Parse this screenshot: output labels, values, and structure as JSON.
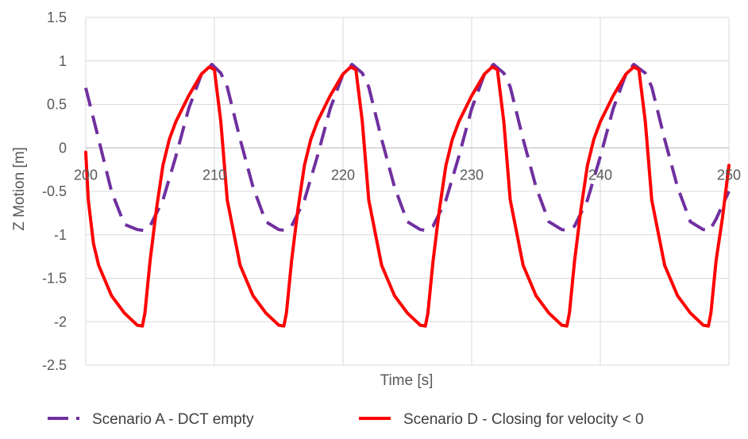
{
  "chart_data": {
    "type": "line",
    "xlabel": "Time [s]",
    "ylabel": "Z Motion [m]",
    "xlim": [
      200,
      250
    ],
    "ylim": [
      -2.5,
      1.5
    ],
    "x_ticks": [
      200,
      210,
      220,
      230,
      240,
      250
    ],
    "y_ticks": [
      1.5,
      1,
      0.5,
      0,
      -0.5,
      -1,
      -1.5,
      -2,
      -2.5
    ],
    "grid": true,
    "legend_position": "bottom",
    "series": [
      {
        "name": "Scenario A - DCT empty",
        "color": "#7030A0",
        "style": "dashed",
        "x": [
          200,
          201,
          202,
          203,
          204,
          204.5,
          205,
          206,
          207,
          208,
          209,
          209.8,
          210.5,
          211,
          212,
          213,
          214,
          215,
          215.5,
          216,
          217,
          218,
          219,
          220,
          220.7,
          221.5,
          222,
          223,
          224,
          225,
          226,
          226.5,
          227,
          228,
          229,
          230,
          231,
          231.7,
          232.5,
          233,
          234,
          235,
          236,
          237,
          237.5,
          238,
          239,
          240,
          241,
          242,
          242.6,
          243.5,
          244,
          245,
          246,
          247,
          248,
          248.5,
          249,
          250
        ],
        "y": [
          0.69,
          0.1,
          -0.5,
          -0.88,
          -0.94,
          -0.95,
          -0.9,
          -0.6,
          -0.1,
          0.45,
          0.85,
          0.96,
          0.86,
          0.7,
          0.1,
          -0.45,
          -0.85,
          -0.94,
          -0.95,
          -0.9,
          -0.6,
          -0.1,
          0.45,
          0.85,
          0.96,
          0.86,
          0.7,
          0.1,
          -0.45,
          -0.85,
          -0.94,
          -0.95,
          -0.9,
          -0.6,
          -0.1,
          0.45,
          0.85,
          0.96,
          0.86,
          0.7,
          0.1,
          -0.45,
          -0.85,
          -0.94,
          -0.95,
          -0.9,
          -0.6,
          -0.1,
          0.45,
          0.85,
          0.96,
          0.86,
          0.7,
          0.1,
          -0.45,
          -0.85,
          -0.94,
          -0.95,
          -0.82,
          -0.5
        ]
      },
      {
        "name": "Scenario D - Closing for velocity < 0",
        "color": "#FF0000",
        "style": "solid",
        "x": [
          200,
          200.2,
          200.6,
          201,
          202,
          203,
          204,
          204.4,
          204.6,
          205,
          205.5,
          206,
          206.5,
          207,
          208,
          209,
          209.6,
          210,
          210.5,
          211,
          212,
          213,
          214,
          215,
          215.4,
          215.6,
          216,
          216.5,
          217,
          217.5,
          218,
          219,
          220,
          220.6,
          221,
          221.5,
          222,
          223,
          224,
          225,
          226,
          226.4,
          226.6,
          227,
          227.5,
          228,
          228.5,
          229,
          230,
          231,
          231.6,
          232,
          232.5,
          233,
          234,
          235,
          236,
          237,
          237.4,
          237.6,
          238,
          238.5,
          239,
          239.5,
          240,
          241,
          242,
          242.6,
          243,
          243.5,
          244,
          245,
          246,
          247,
          248,
          248.4,
          248.6,
          249,
          249.5,
          250
        ],
        "y": [
          -0.05,
          -0.6,
          -1.1,
          -1.35,
          -1.7,
          -1.9,
          -2.04,
          -2.05,
          -1.9,
          -1.3,
          -0.7,
          -0.2,
          0.1,
          0.3,
          0.6,
          0.85,
          0.93,
          0.9,
          0.3,
          -0.6,
          -1.35,
          -1.7,
          -1.9,
          -2.04,
          -2.05,
          -1.9,
          -1.3,
          -0.7,
          -0.2,
          0.1,
          0.3,
          0.6,
          0.85,
          0.93,
          0.9,
          0.3,
          -0.6,
          -1.35,
          -1.7,
          -1.9,
          -2.04,
          -2.05,
          -1.9,
          -1.3,
          -0.7,
          -0.2,
          0.1,
          0.3,
          0.6,
          0.85,
          0.93,
          0.9,
          0.3,
          -0.6,
          -1.35,
          -1.7,
          -1.9,
          -2.04,
          -2.05,
          -1.9,
          -1.3,
          -0.7,
          -0.2,
          0.1,
          0.3,
          0.6,
          0.85,
          0.93,
          0.9,
          0.3,
          -0.6,
          -1.35,
          -1.7,
          -1.9,
          -2.04,
          -2.05,
          -1.9,
          -1.3,
          -0.8,
          -0.2
        ]
      }
    ]
  }
}
